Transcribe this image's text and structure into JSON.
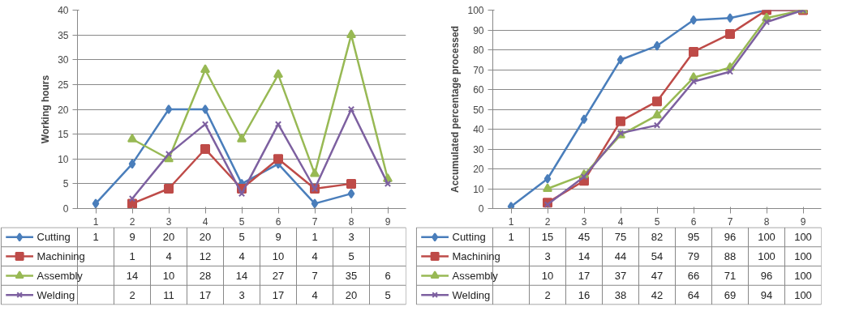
{
  "chart_data": [
    {
      "type": "line",
      "ylabel": "Working hours",
      "categories": [
        "1",
        "2",
        "3",
        "4",
        "5",
        "6",
        "7",
        "8",
        "9"
      ],
      "ylim": [
        0,
        40
      ],
      "yticks": [
        0,
        5,
        10,
        15,
        20,
        25,
        30,
        35,
        40
      ],
      "grid": "y",
      "legend": "bottom",
      "data_labels": true,
      "line_style": "solid",
      "series": [
        {
          "name": "Cutting",
          "color": "#4a7ebb",
          "marker": "diamond",
          "values": [
            1,
            9,
            20,
            20,
            5,
            9,
            1,
            3,
            null
          ]
        },
        {
          "name": "Machining",
          "color": "#be4b48",
          "marker": "square",
          "values": [
            null,
            1,
            4,
            12,
            4,
            10,
            4,
            5,
            null
          ]
        },
        {
          "name": "Assembly",
          "color": "#98b954",
          "marker": "triangle",
          "values": [
            null,
            14,
            10,
            28,
            14,
            27,
            7,
            35,
            6
          ]
        },
        {
          "name": "Welding",
          "color": "#7d60a0",
          "marker": "cross",
          "values": [
            null,
            2,
            11,
            17,
            3,
            17,
            4,
            20,
            5
          ]
        }
      ]
    },
    {
      "type": "line",
      "ylabel": "Accumulated percentage processed",
      "categories": [
        "1",
        "2",
        "3",
        "4",
        "5",
        "6",
        "7",
        "8",
        "9"
      ],
      "ylim": [
        0,
        100
      ],
      "yticks": [
        0,
        10,
        20,
        30,
        40,
        50,
        60,
        70,
        80,
        90,
        100
      ],
      "grid": "y",
      "legend": "bottom",
      "data_labels": true,
      "line_style": "solid",
      "series": [
        {
          "name": "Cutting",
          "color": "#4a7ebb",
          "marker": "diamond",
          "values": [
            1,
            15,
            45,
            75,
            82,
            95,
            96,
            100,
            100
          ]
        },
        {
          "name": "Machining",
          "color": "#be4b48",
          "marker": "square",
          "values": [
            null,
            3,
            14,
            44,
            54,
            79,
            88,
            100,
            100
          ]
        },
        {
          "name": "Assembly",
          "color": "#98b954",
          "marker": "triangle",
          "values": [
            null,
            10,
            17,
            37,
            47,
            66,
            71,
            96,
            100
          ]
        },
        {
          "name": "Welding",
          "color": "#7d60a0",
          "marker": "cross",
          "values": [
            null,
            2,
            16,
            38,
            42,
            64,
            69,
            94,
            100
          ]
        }
      ]
    }
  ]
}
